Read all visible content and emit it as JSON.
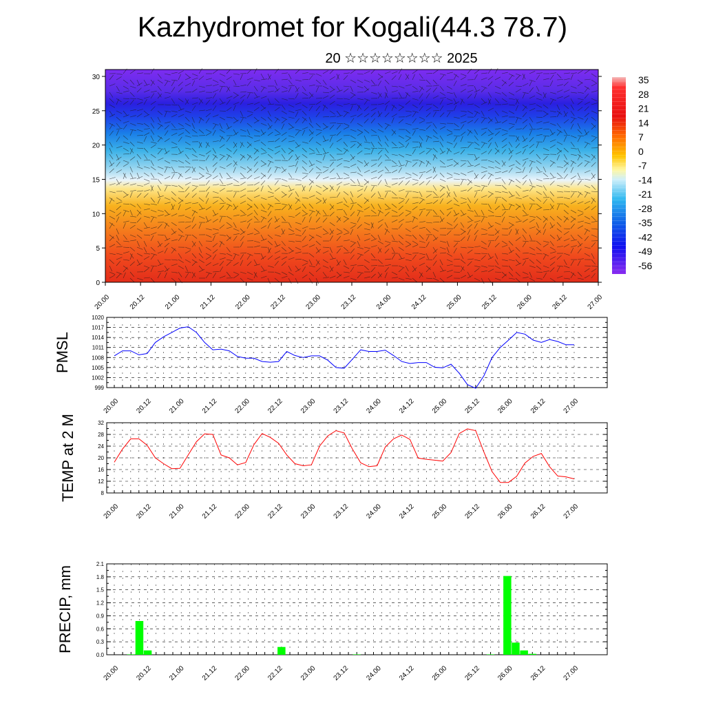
{
  "title": "Kazhydromet for Kogali(44.3 78.7)",
  "subtitle": "20 ☆☆☆☆☆☆☆☆ 2025",
  "time_labels": [
    "20.00",
    "20.12",
    "21.00",
    "21.12",
    "22.00",
    "22.12",
    "23.00",
    "23.12",
    "24.00",
    "24.12",
    "25.00",
    "25.12",
    "26.00",
    "26.12",
    "27.00"
  ],
  "chart_data": [
    {
      "type": "heatmap",
      "name": "temperature-wind-cross-section",
      "y_ticks": [
        0,
        5,
        10,
        15,
        20,
        25,
        30
      ],
      "ylim": [
        0,
        31
      ],
      "colorbar_labels": [
        "35",
        "28",
        "21",
        "14",
        "7",
        "0",
        "-7",
        "-14",
        "-21",
        "-28",
        "-35",
        "-42",
        "-49",
        "-56"
      ],
      "colorbar_range": [
        -60,
        37
      ]
    },
    {
      "type": "line",
      "ylabel": "PMSL",
      "ylim": [
        999,
        1020
      ],
      "y_ticks": [
        999,
        1002,
        1005,
        1008,
        1011,
        1014,
        1017,
        1020
      ],
      "color": "#0000ff",
      "x_step_hours": 3,
      "values": [
        1008.5,
        1010,
        1010,
        1008.8,
        1009.2,
        1012.5,
        1014.2,
        1015.5,
        1016.8,
        1017.2,
        1015.5,
        1012.5,
        1010.3,
        1010.5,
        1010,
        1008.3,
        1007.8,
        1007.8,
        1006.8,
        1006.6,
        1006.8,
        1009.8,
        1008.6,
        1008,
        1008.5,
        1008.5,
        1007.2,
        1005,
        1004.8,
        1007.5,
        1010.3,
        1009.8,
        1009.8,
        1010.2,
        1008.6,
        1006.8,
        1006.2,
        1006.5,
        1006.5,
        1005.1,
        1004.9,
        1006,
        1003.3,
        999.9,
        998.8,
        1002.5,
        1008,
        1011,
        1013.2,
        1015.5,
        1015,
        1013.2,
        1012.5,
        1013.4,
        1012.8,
        1011.8,
        1011.8
      ]
    },
    {
      "type": "line",
      "ylabel": "TEMP at 2 M",
      "ylim": [
        8,
        32
      ],
      "y_ticks": [
        8,
        12,
        16,
        20,
        24,
        28,
        32
      ],
      "color": "#ff0000",
      "x_step_hours": 3,
      "values": [
        18.5,
        23,
        26.5,
        26.5,
        24.3,
        20,
        18,
        16.3,
        16.4,
        21,
        25.5,
        28.2,
        28,
        21,
        20,
        17.6,
        18.4,
        24.5,
        28.3,
        27,
        25,
        21,
        18,
        17.3,
        17.6,
        24,
        27.5,
        29.3,
        28.5,
        23,
        18.3,
        17,
        17.3,
        23.7,
        26.5,
        27.8,
        26.3,
        19.9,
        19.5,
        19.2,
        18.9,
        21.8,
        28.3,
        29.9,
        29.3,
        22,
        15.3,
        11.6,
        11.6,
        13.7,
        18.2,
        20.5,
        21.5,
        17,
        13.8,
        13.5,
        12.8
      ]
    },
    {
      "type": "bar",
      "ylabel": "PRECIP, mm",
      "ylim": [
        0,
        2.1
      ],
      "y_ticks": [
        "0.0",
        "0.3",
        "0.6",
        "0.9",
        "1.2",
        "1.5",
        "1.8",
        "2.1"
      ],
      "color": "#00ff00",
      "x_step_hours": 3,
      "values": [
        0,
        0,
        0.01,
        0.78,
        0.1,
        0,
        0,
        0,
        0,
        0,
        0,
        0,
        0,
        0,
        0,
        0,
        0,
        0,
        0,
        0,
        0.18,
        0,
        0,
        0,
        0,
        0,
        0,
        0,
        0,
        0.01,
        0,
        0,
        0,
        0,
        0,
        0,
        0,
        0,
        0,
        0,
        0,
        0,
        0,
        0,
        0,
        0.01,
        0,
        1.82,
        0.28,
        0.1,
        0.02,
        0,
        0,
        0,
        0,
        0
      ]
    }
  ]
}
